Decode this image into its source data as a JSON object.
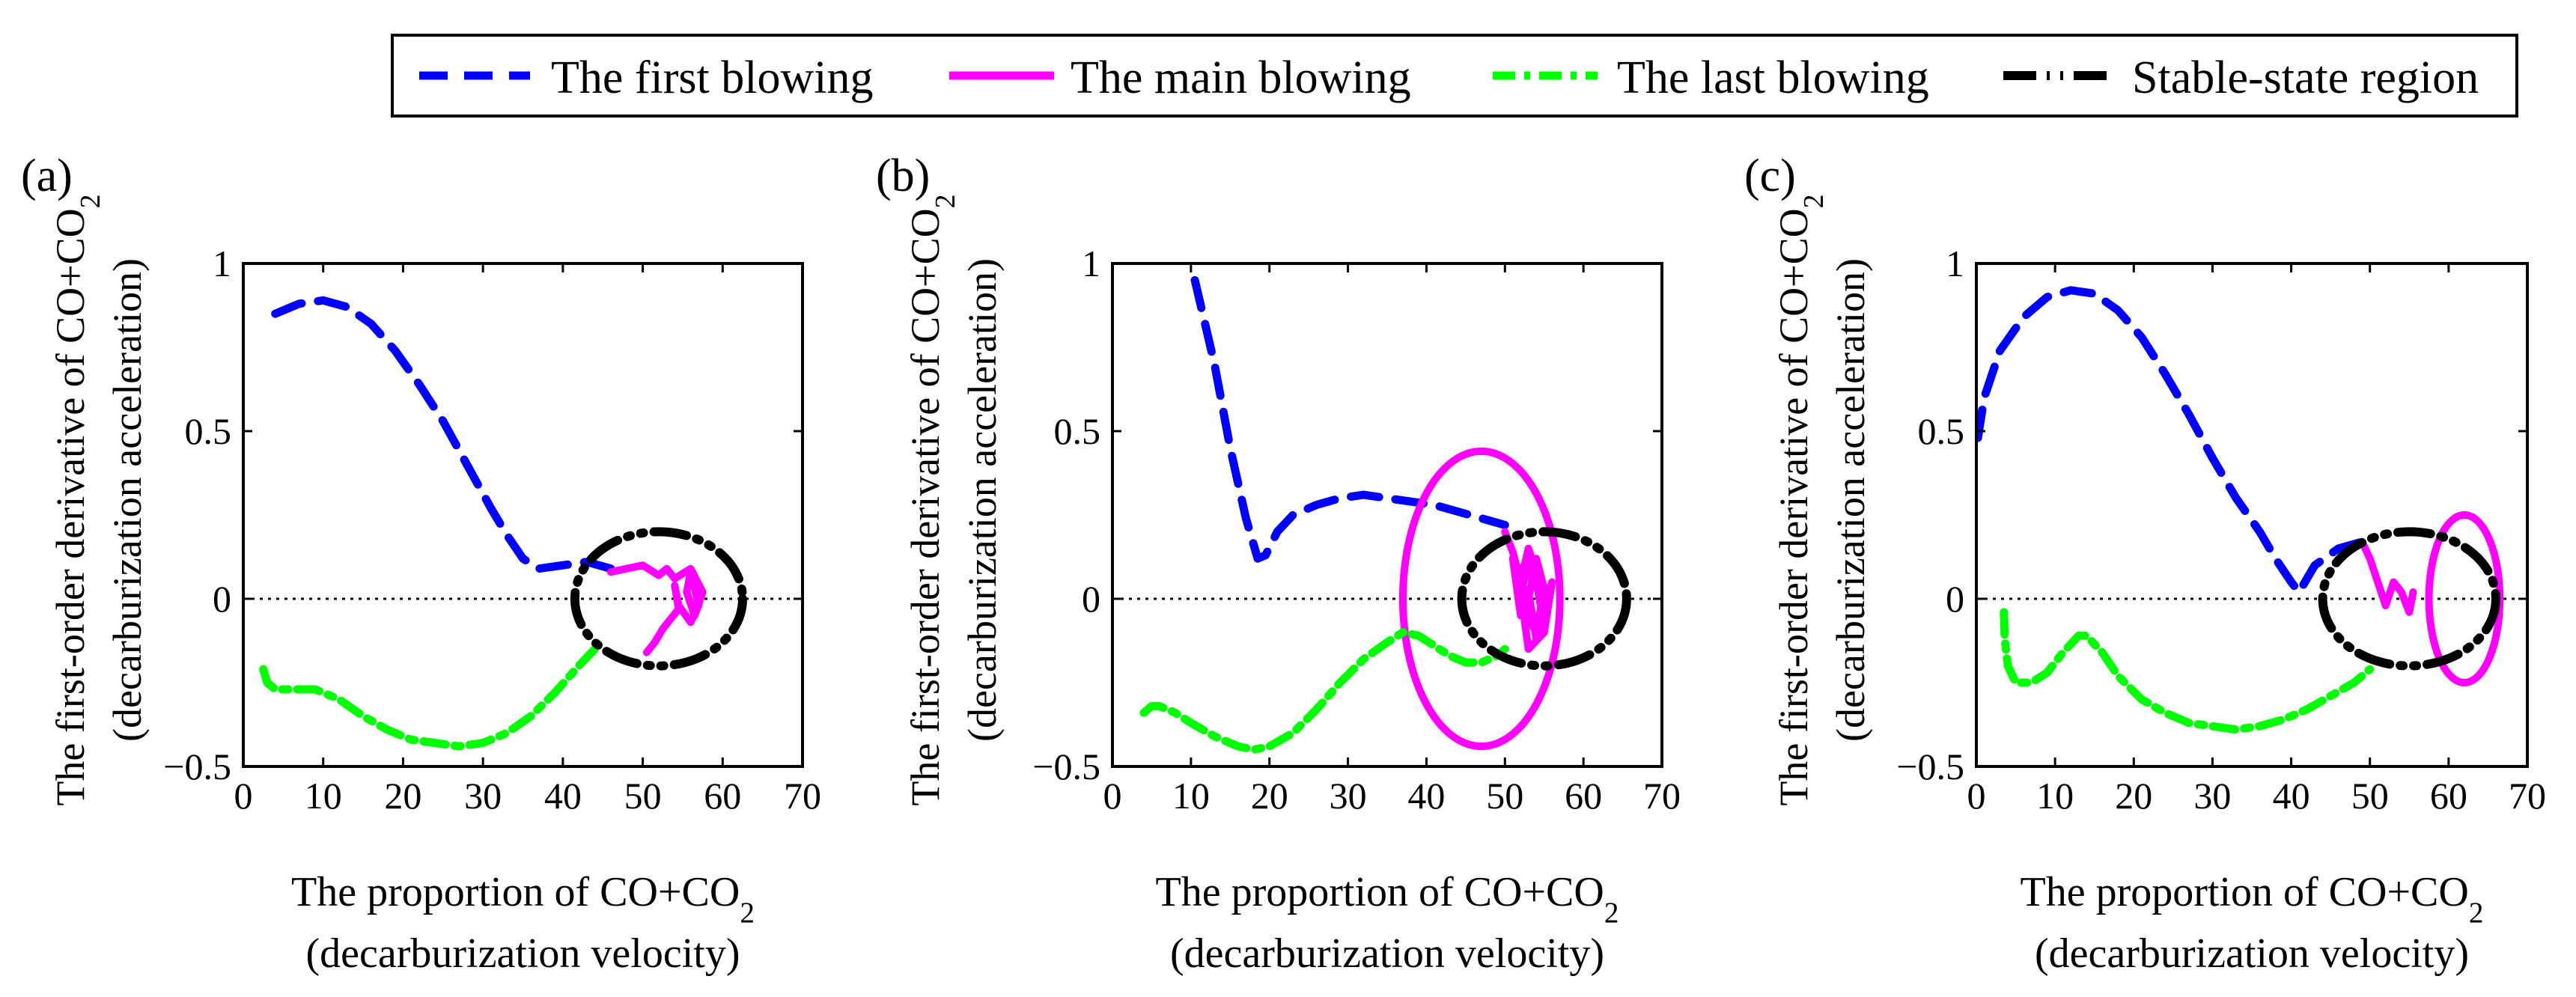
{
  "legend": {
    "items": [
      {
        "label": "The first blowing",
        "color": "#0000ff",
        "style": "dashed"
      },
      {
        "label": "The main blowing",
        "color": "#ff00ff",
        "style": "solid"
      },
      {
        "label": "The last blowing",
        "color": "#00ff00",
        "style": "dashdot"
      },
      {
        "label": "Stable-state region",
        "color": "#000000",
        "style": "dashdotdot"
      }
    ]
  },
  "chart_data": [
    {
      "type": "line",
      "panel_label": "(a)",
      "xlabel": [
        "The proportion of CO+CO₂",
        "(decarburization velocity)"
      ],
      "ylabel": [
        "The first-order derivative of CO+CO₂",
        "(decarburization acceleration)"
      ],
      "xlim": [
        0,
        70
      ],
      "ylim": [
        -0.5,
        1
      ],
      "xticks": [
        0,
        10,
        20,
        30,
        40,
        50,
        60,
        70
      ],
      "yticks": [
        -0.5,
        0,
        0.5,
        1
      ],
      "xtick_labels": [
        "0",
        "10",
        "20",
        "30",
        "40",
        "50",
        "60",
        "70"
      ],
      "ytick_labels": [
        "−0.5",
        "0",
        "0.5",
        "1"
      ],
      "zero_line": true,
      "series": [
        {
          "name": "The first blowing",
          "x": [
            4,
            7,
            10,
            13,
            16,
            19,
            22,
            25,
            28,
            31,
            33,
            35,
            37,
            40,
            43,
            46
          ],
          "y": [
            0.85,
            0.88,
            0.89,
            0.87,
            0.82,
            0.74,
            0.64,
            0.53,
            0.4,
            0.27,
            0.19,
            0.12,
            0.09,
            0.1,
            0.11,
            0.09
          ]
        },
        {
          "name": "The main blowing",
          "x": [
            46,
            48,
            50,
            52,
            53,
            54,
            56,
            57.5,
            56.5,
            55.5,
            56,
            57,
            56,
            54.5,
            54,
            54.5,
            52.5,
            51.5,
            50.5
          ],
          "y": [
            0.08,
            0.09,
            0.1,
            0.07,
            0.09,
            0.06,
            0.09,
            0.02,
            -0.05,
            0.02,
            0.08,
            -0.02,
            -0.07,
            -0.02,
            0.04,
            -0.03,
            -0.09,
            -0.13,
            -0.16
          ]
        },
        {
          "name": "The last blowing",
          "x": [
            2.5,
            3,
            4,
            6,
            9,
            12,
            15,
            18,
            21,
            24,
            27,
            30,
            33,
            36,
            39,
            42,
            44
          ],
          "y": [
            -0.21,
            -0.25,
            -0.27,
            -0.27,
            -0.27,
            -0.3,
            -0.35,
            -0.39,
            -0.42,
            -0.43,
            -0.44,
            -0.43,
            -0.4,
            -0.35,
            -0.28,
            -0.2,
            -0.15
          ]
        },
        {
          "name": "Stable-state region",
          "ellipse": {
            "cx": 52,
            "cy": 0,
            "rx": 10.5,
            "ry": 0.2
          }
        }
      ]
    },
    {
      "type": "line",
      "panel_label": "(b)",
      "xlabel": [
        "The proportion of CO+CO₂",
        "(decarburization velocity)"
      ],
      "ylabel": [
        "The first-order derivative of CO+CO₂",
        "(decarburization acceleration)"
      ],
      "xlim": [
        0,
        70
      ],
      "ylim": [
        -0.5,
        1
      ],
      "xticks": [
        0,
        10,
        20,
        30,
        40,
        50,
        60,
        70
      ],
      "yticks": [
        -0.5,
        0,
        0.5,
        1
      ],
      "xtick_labels": [
        "0",
        "10",
        "20",
        "30",
        "40",
        "50",
        "60",
        "70"
      ],
      "ytick_labels": [
        "−0.5",
        "0",
        "0.5",
        "1"
      ],
      "zero_line": true,
      "series": [
        {
          "name": "The first blowing",
          "x": [
            10.5,
            13,
            15,
            17,
            18.5,
            19.5,
            21,
            23,
            26,
            29,
            32,
            35,
            38,
            41,
            44,
            47,
            50
          ],
          "y": [
            0.95,
            0.7,
            0.45,
            0.24,
            0.12,
            0.13,
            0.2,
            0.25,
            0.28,
            0.3,
            0.31,
            0.3,
            0.29,
            0.28,
            0.26,
            0.24,
            0.22
          ]
        },
        {
          "name": "The main blowing",
          "ellipse": {
            "cx": 47,
            "cy": 0,
            "rx": 10,
            "ry": 0.44
          }
        },
        {
          "name": "The main blowing",
          "x": [
            50,
            51,
            52,
            53,
            54,
            55,
            56,
            55,
            53,
            52,
            53,
            54,
            55,
            54,
            53,
            52,
            51,
            52,
            53,
            54,
            55,
            54,
            53
          ],
          "y": [
            0.2,
            0.14,
            0.05,
            0.15,
            0.08,
            -0.02,
            0.05,
            -0.1,
            -0.15,
            0.02,
            0.1,
            0.05,
            -0.08,
            -0.12,
            0.02,
            -0.05,
            0.12,
            0.08,
            -0.06,
            -0.1,
            0.03,
            0.12,
            0.0
          ]
        },
        {
          "name": "The last blowing",
          "x": [
            4,
            5,
            6,
            8,
            10,
            13,
            16,
            18,
            20,
            23,
            26,
            29,
            32,
            35,
            37,
            39,
            41,
            43,
            45,
            47,
            49,
            50
          ],
          "y": [
            -0.34,
            -0.32,
            -0.32,
            -0.34,
            -0.37,
            -0.41,
            -0.44,
            -0.45,
            -0.44,
            -0.4,
            -0.33,
            -0.25,
            -0.18,
            -0.13,
            -0.1,
            -0.11,
            -0.14,
            -0.17,
            -0.19,
            -0.19,
            -0.17,
            -0.15
          ]
        },
        {
          "name": "Stable-state region",
          "ellipse": {
            "cx": 55,
            "cy": 0,
            "rx": 10.5,
            "ry": 0.2
          }
        }
      ]
    },
    {
      "type": "line",
      "panel_label": "(c)",
      "xlabel": [
        "The proportion of CO+CO₂",
        "(decarburization velocity)"
      ],
      "ylabel": [
        "The first-order derivative of CO+CO₂",
        "(decarburization acceleration)"
      ],
      "xlim": [
        0,
        70
      ],
      "ylim": [
        -0.5,
        1
      ],
      "xticks": [
        0,
        10,
        20,
        30,
        40,
        50,
        60,
        70
      ],
      "yticks": [
        -0.5,
        0,
        0.5,
        1
      ],
      "xtick_labels": [
        "0",
        "10",
        "20",
        "30",
        "40",
        "50",
        "60",
        "70"
      ],
      "ytick_labels": [
        "−0.5",
        "0",
        "0.5",
        "1"
      ],
      "zero_line": true,
      "series": [
        {
          "name": "The first blowing",
          "x": [
            0.2,
            1,
            3,
            6,
            9,
            12,
            15,
            18,
            21,
            24,
            27,
            30,
            33,
            36,
            38,
            40,
            41,
            43,
            46,
            49
          ],
          "y": [
            0.48,
            0.6,
            0.74,
            0.84,
            0.9,
            0.92,
            0.91,
            0.86,
            0.78,
            0.67,
            0.55,
            0.42,
            0.3,
            0.2,
            0.12,
            0.05,
            0.02,
            0.1,
            0.15,
            0.17
          ]
        },
        {
          "name": "The main blowing",
          "x": [
            49,
            50,
            51,
            52,
            53,
            54,
            55,
            55.5
          ],
          "y": [
            0.17,
            0.12,
            0.05,
            -0.02,
            0.05,
            0.02,
            -0.04,
            0.02
          ]
        },
        {
          "name": "The main blowing",
          "ellipse": {
            "cx": 62,
            "cy": 0,
            "rx": 4.5,
            "ry": 0.25
          }
        },
        {
          "name": "The last blowing",
          "x": [
            3.5,
            3.6,
            4,
            5,
            7,
            9,
            11,
            13,
            14,
            16,
            18,
            21,
            24,
            27,
            30,
            33,
            36,
            39,
            42,
            45,
            48,
            50
          ],
          "y": [
            -0.04,
            -0.12,
            -0.2,
            -0.25,
            -0.25,
            -0.22,
            -0.16,
            -0.11,
            -0.11,
            -0.16,
            -0.23,
            -0.3,
            -0.34,
            -0.37,
            -0.38,
            -0.39,
            -0.38,
            -0.36,
            -0.33,
            -0.29,
            -0.25,
            -0.21
          ]
        },
        {
          "name": "Stable-state region",
          "ellipse": {
            "cx": 55,
            "cy": 0,
            "rx": 11,
            "ry": 0.2
          }
        }
      ]
    }
  ]
}
